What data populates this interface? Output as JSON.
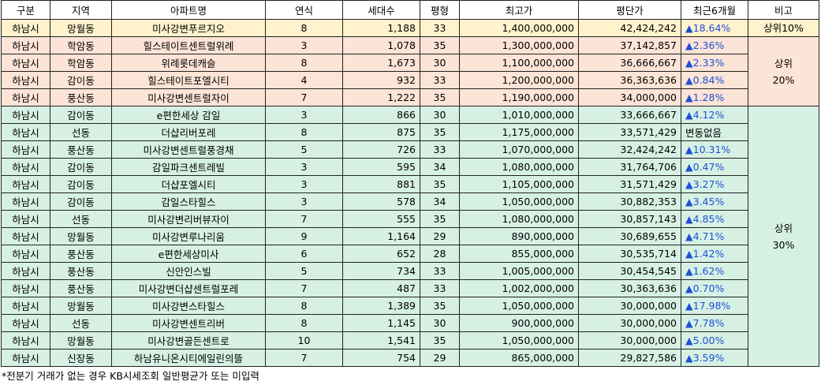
{
  "table": {
    "header": [
      "구분",
      "지역",
      "아파트명",
      "연식",
      "세대수",
      "평형",
      "최고가",
      "평단가",
      "최근6개월",
      "비고"
    ],
    "rows": [
      [
        "하남시",
        "망월동",
        "미사강변푸르지오",
        "8",
        "1,188",
        "33",
        "1,400,000,000",
        "42,424,242",
        "▲18.64%"
      ],
      [
        "하남시",
        "학암동",
        "힐스테이트센트럴위례",
        "3",
        "1,078",
        "35",
        "1,300,000,000",
        "37,142,857",
        "▲2.36%"
      ],
      [
        "하남시",
        "학암동",
        "위례롯데캐슬",
        "8",
        "1,673",
        "30",
        "1,100,000,000",
        "36,666,667",
        "▲2.33%"
      ],
      [
        "하남시",
        "감이동",
        "힐스테이트포엘시티",
        "4",
        "932",
        "33",
        "1,200,000,000",
        "36,363,636",
        "▲0.84%"
      ],
      [
        "하남시",
        "풍산동",
        "미사강변센트럴자이",
        "7",
        "1,222",
        "35",
        "1,190,000,000",
        "34,000,000",
        "▲1.28%"
      ],
      [
        "하남시",
        "감이동",
        "e편한세상 감일",
        "3",
        "866",
        "30",
        "1,010,000,000",
        "33,666,667",
        "▲4.12%"
      ],
      [
        "하남시",
        "선동",
        "더샵리버포레",
        "8",
        "875",
        "35",
        "1,175,000,000",
        "33,571,429",
        "변동없음"
      ],
      [
        "하남시",
        "풍산동",
        "미사강변센트럴풍경채",
        "5",
        "726",
        "33",
        "1,070,000,000",
        "32,424,242",
        "▲10.31%"
      ],
      [
        "하남시",
        "감이동",
        "감일파크센트레빌",
        "3",
        "595",
        "34",
        "1,080,000,000",
        "31,764,706",
        "▲0.47%"
      ],
      [
        "하남시",
        "감이동",
        "더샵포엘시티",
        "3",
        "881",
        "35",
        "1,105,000,000",
        "31,571,429",
        "▲3.27%"
      ],
      [
        "하남시",
        "감이동",
        "감일스타힐스",
        "3",
        "578",
        "34",
        "1,050,000,000",
        "30,882,353",
        "▲3.45%"
      ],
      [
        "하남시",
        "선동",
        "미사강변리버뷰자이",
        "7",
        "555",
        "35",
        "1,080,000,000",
        "30,857,143",
        "▲4.85%"
      ],
      [
        "하남시",
        "망월동",
        "미사강변루나리움",
        "9",
        "1,164",
        "29",
        "890,000,000",
        "30,689,655",
        "▲4.71%"
      ],
      [
        "하남시",
        "풍산동",
        "e편한세상미사",
        "6",
        "652",
        "28",
        "855,000,000",
        "30,535,714",
        "▲1.42%"
      ],
      [
        "하남시",
        "풍산동",
        "신안인스빌",
        "5",
        "734",
        "33",
        "1,005,000,000",
        "30,454,545",
        "▲1.62%"
      ],
      [
        "하남시",
        "풍산동",
        "미사강변더샵센트럴포레",
        "7",
        "487",
        "33",
        "1,002,000,000",
        "30,363,636",
        "▲0.70%"
      ],
      [
        "하남시",
        "망월동",
        "미사강변스타힐스",
        "8",
        "1,389",
        "35",
        "1,050,000,000",
        "30,000,000",
        "▲17.98%"
      ],
      [
        "하남시",
        "선동",
        "미사강변센트리버",
        "8",
        "1,145",
        "30",
        "900,000,000",
        "30,000,000",
        "▲7.78%"
      ],
      [
        "하남시",
        "망월동",
        "미사강변골든센트로",
        "10",
        "1,541",
        "35",
        "1,050,000,000",
        "30,000,000",
        "▲5.00%"
      ],
      [
        "하남시",
        "신장동",
        "하남유니온시티에일린의뜰",
        "7",
        "754",
        "29",
        "865,000,000",
        "29,827,586",
        "▲3.59%"
      ]
    ],
    "remarks": [
      "상위10%",
      "상위\n20%",
      "상위\n30%"
    ],
    "note": "*전분기 거래가 없는 경우 KB시세조회 일반평균가 또는 미입력"
  }
}
